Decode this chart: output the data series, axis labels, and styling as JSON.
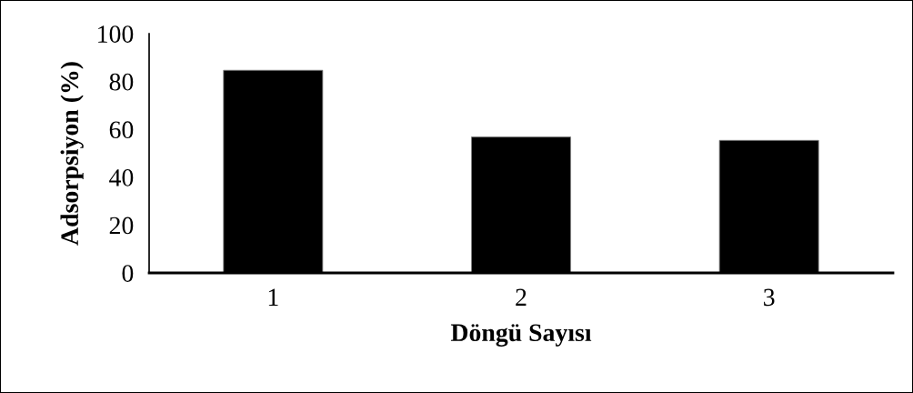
{
  "chart_data": {
    "type": "bar",
    "xlabel": "Döngü Sayısı",
    "ylabel": "Adsorpsiyon (%)",
    "categories": [
      "1",
      "2",
      "3"
    ],
    "values": [
      84.7,
      56.8,
      55.4
    ],
    "color": "#000000",
    "ylim": [
      0,
      100
    ],
    "yticks": [
      0,
      20,
      40,
      60,
      80,
      100
    ],
    "grid": false,
    "legend": false
  }
}
